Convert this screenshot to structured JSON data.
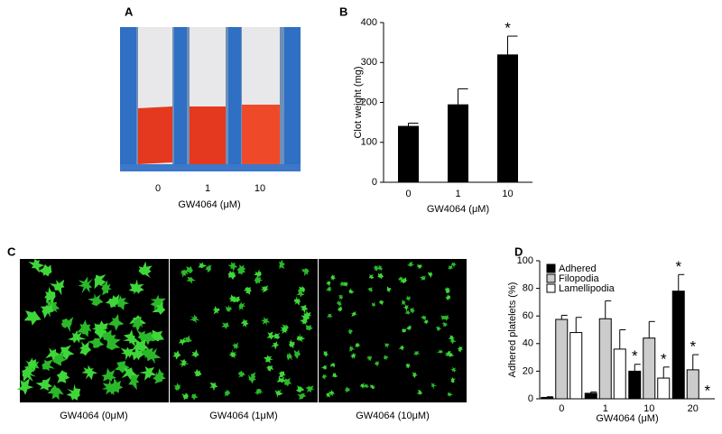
{
  "figure": {
    "panels": [
      "A",
      "B",
      "C",
      "D"
    ],
    "panel_a": {
      "categories": [
        "0",
        "1",
        "10"
      ],
      "xlabel": "GW4064 (μM)"
    },
    "panel_c": {
      "captions": [
        "GW4064 (0μM)",
        "GW4064 (1μM)",
        "GW4064 (10μM)"
      ]
    }
  },
  "chart_data": [
    {
      "type": "bar",
      "ylabel": "Clot weight (mg)",
      "xlabel": "GW4064 (μM)",
      "categories": [
        "0",
        "1",
        "10"
      ],
      "values": [
        140,
        194,
        319
      ],
      "errors": [
        8,
        40,
        47
      ],
      "color": "#000000",
      "ylim": [
        0,
        400
      ],
      "yticks": [
        0,
        100,
        200,
        300,
        400
      ],
      "annotations": [
        {
          "text": "*",
          "category": 2
        }
      ]
    },
    {
      "type": "bar",
      "ylabel": "Adhered platelets (%)",
      "xlabel": "GW4064 (μM)",
      "categories": [
        "0",
        "1",
        "10",
        "20"
      ],
      "series": [
        {
          "name": "Adhered",
          "color": "#000000",
          "values": [
            1,
            4,
            20,
            78
          ],
          "errors": [
            0.5,
            1,
            5,
            12
          ]
        },
        {
          "name": "Filopodia",
          "color": "#cccccc",
          "values": [
            57.5,
            58,
            44,
            21
          ],
          "errors": [
            3,
            13,
            12,
            11
          ]
        },
        {
          "name": "Lamellipodia",
          "color": "#ffffff",
          "values": [
            48,
            36,
            15,
            0
          ],
          "errors": [
            11,
            14,
            8,
            0
          ]
        }
      ],
      "ylim": [
        0,
        100
      ],
      "yticks": [
        0,
        20,
        40,
        60,
        80,
        100
      ],
      "legend": "upper left",
      "annotations": [
        {
          "text": "*",
          "series": 0,
          "category": 2
        },
        {
          "text": "*",
          "series": 2,
          "category": 2
        },
        {
          "text": "*",
          "series": 0,
          "category": 3
        },
        {
          "text": "*",
          "series": 1,
          "category": 3
        },
        {
          "text": "*",
          "series": 2,
          "category": 3
        }
      ]
    }
  ]
}
